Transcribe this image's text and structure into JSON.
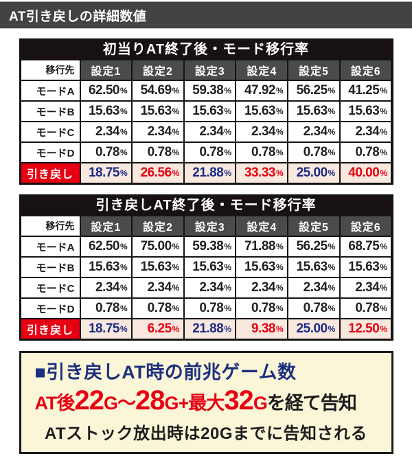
{
  "page_title": "AT引き戻しの詳細数値",
  "percent_symbol": "%",
  "colors": {
    "titlebar_gray": "#434343",
    "table_title_black": "#171111",
    "header_gray": "#4b4b4b",
    "accent_red": "#e60012",
    "value_blue": "#1d2b87",
    "highlight_cell_bg": "#f9e8de",
    "note_bg": "#fcf6d9",
    "note_title_navy": "#1d3080"
  },
  "tables": [
    {
      "title": "初当りAT終了後・モード移行率",
      "corner_label": "移行先",
      "columns": [
        "設定1",
        "設定2",
        "設定3",
        "設定4",
        "設定5",
        "設定6"
      ],
      "rows": [
        {
          "label": "モードA",
          "values": [
            "62.50",
            "54.69",
            "59.38",
            "47.92",
            "56.25",
            "41.25"
          ]
        },
        {
          "label": "モードB",
          "values": [
            "15.63",
            "15.63",
            "15.63",
            "15.63",
            "15.63",
            "15.63"
          ]
        },
        {
          "label": "モードC",
          "values": [
            "2.34",
            "2.34",
            "2.34",
            "2.34",
            "2.34",
            "2.34"
          ]
        },
        {
          "label": "モードD",
          "values": [
            "0.78",
            "0.78",
            "0.78",
            "0.78",
            "0.78",
            "0.78"
          ]
        }
      ],
      "highlight_row": {
        "label": "引き戻し",
        "values": [
          "18.75",
          "26.56",
          "21.88",
          "33.33",
          "25.00",
          "40.00"
        ],
        "value_colors": [
          "blue",
          "red",
          "blue",
          "red",
          "blue",
          "red"
        ]
      }
    },
    {
      "title": "引き戻しAT終了後・モード移行率",
      "corner_label": "移行先",
      "columns": [
        "設定1",
        "設定2",
        "設定3",
        "設定4",
        "設定5",
        "設定6"
      ],
      "rows": [
        {
          "label": "モードA",
          "values": [
            "62.50",
            "75.00",
            "59.38",
            "71.88",
            "56.25",
            "68.75"
          ]
        },
        {
          "label": "モードB",
          "values": [
            "15.63",
            "15.63",
            "15.63",
            "15.63",
            "15.63",
            "15.63"
          ]
        },
        {
          "label": "モードC",
          "values": [
            "2.34",
            "2.34",
            "2.34",
            "2.34",
            "2.34",
            "2.34"
          ]
        },
        {
          "label": "モードD",
          "values": [
            "0.78",
            "0.78",
            "0.78",
            "0.78",
            "0.78",
            "0.78"
          ]
        }
      ],
      "highlight_row": {
        "label": "引き戻し",
        "values": [
          "18.75",
          "6.25",
          "21.88",
          "9.38",
          "25.00",
          "12.50"
        ],
        "value_colors": [
          "blue",
          "red",
          "blue",
          "red",
          "blue",
          "red"
        ]
      }
    }
  ],
  "note_box": {
    "title": "■引き戻しAT時の前兆ゲーム数",
    "announce_segments": [
      {
        "text": "AT後",
        "size": "md",
        "color": "red"
      },
      {
        "text": "22",
        "size": "lg",
        "color": "red"
      },
      {
        "text": "G",
        "size": "md",
        "color": "red"
      },
      {
        "text": "〜",
        "size": "md",
        "color": "red"
      },
      {
        "text": "28",
        "size": "lg",
        "color": "red"
      },
      {
        "text": "G",
        "size": "md",
        "color": "red"
      },
      {
        "text": "+",
        "size": "md",
        "color": "red"
      },
      {
        "text": "最大",
        "size": "md",
        "color": "red"
      },
      {
        "text": "32",
        "size": "lg",
        "color": "red"
      },
      {
        "text": "G",
        "size": "md",
        "color": "red"
      },
      {
        "text": "を経て告知",
        "size": "md",
        "color": "black"
      }
    ],
    "stock_line": "ATストック放出時は20Gまでに告知される"
  }
}
